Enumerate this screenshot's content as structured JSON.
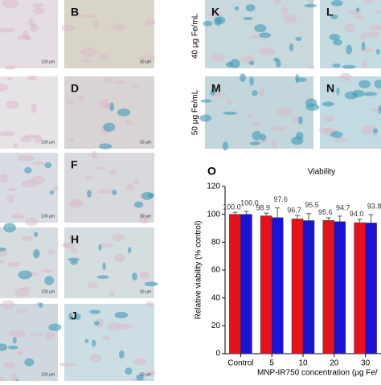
{
  "panels": [
    {
      "scale": "100 μm"
    },
    {
      "label": "B",
      "scale": "50 μm"
    },
    {
      "scale": "100 μm"
    },
    {
      "label": "D",
      "scale": "50 μm"
    },
    {
      "scale": "100 μm"
    },
    {
      "label": "F",
      "scale": "50 μm"
    },
    {
      "scale": "100 μm"
    },
    {
      "label": "H",
      "scale": "50 μm"
    },
    {
      "scale": "100 μm"
    },
    {
      "label": "J",
      "scale": "50 μm"
    },
    {
      "label": "K"
    },
    {
      "label": "L"
    },
    {
      "label": "M"
    },
    {
      "label": "N"
    }
  ],
  "row_labels": [
    "40 μg Fe/mL",
    "50 μg Fe/mL"
  ],
  "chart_label": "O",
  "chart_data": {
    "type": "bar",
    "title": "Viability",
    "y_label": "Relative viability (% control)",
    "x_label": "MNP-IR750 concentration (μg Fe/",
    "categories": [
      "Control",
      "5",
      "10",
      "20",
      "30"
    ],
    "series": [
      {
        "color": "#e8101a",
        "values": [
          100.0,
          98.9,
          96.7,
          95.6,
          94.0
        ],
        "value_labels": [
          "100.0",
          "98.9",
          "96.7",
          "95.6",
          "94.0"
        ],
        "errors": [
          1.5,
          2,
          2.5,
          2,
          2.5
        ]
      },
      {
        "color": "#1a14d8",
        "values": [
          100.0,
          97.6,
          95.5,
          94.7,
          93.8
        ],
        "value_labels": [
          "100.0",
          "97.6",
          "95.5",
          "94.7",
          "93.8"
        ],
        "errors": [
          2,
          7,
          5,
          4,
          6
        ]
      }
    ],
    "ylim": [
      0,
      120
    ],
    "yticks": [
      0,
      20,
      40,
      60,
      80,
      100,
      120
    ]
  }
}
